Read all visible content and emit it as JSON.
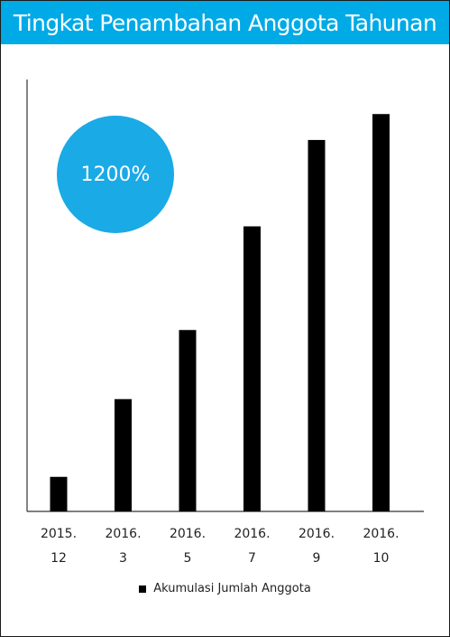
{
  "header": {
    "title": "Tingkat Penambahan Anggota Tahunan"
  },
  "badge": {
    "text": "1200%",
    "color": "#1aaae6"
  },
  "colors": {
    "header_bg": "#00aae6",
    "bar": "#000000",
    "axis": "#333333"
  },
  "chart_data": {
    "type": "bar",
    "title": "Tingkat Penambahan Anggota Tahunan",
    "categories": [
      [
        "2015.",
        "12"
      ],
      [
        "2016.",
        "3"
      ],
      [
        "2016.",
        "5"
      ],
      [
        "2016.",
        "7"
      ],
      [
        "2016.",
        "9"
      ],
      [
        "2016.",
        "10"
      ]
    ],
    "series": [
      {
        "name": "Akumulasi Jumlah Anggota",
        "values": [
          4,
          13,
          21,
          33,
          43,
          46
        ]
      }
    ],
    "ylim": [
      0,
      50
    ],
    "grid": false,
    "legend_position": "bottom-center",
    "annotation": "1200%"
  }
}
